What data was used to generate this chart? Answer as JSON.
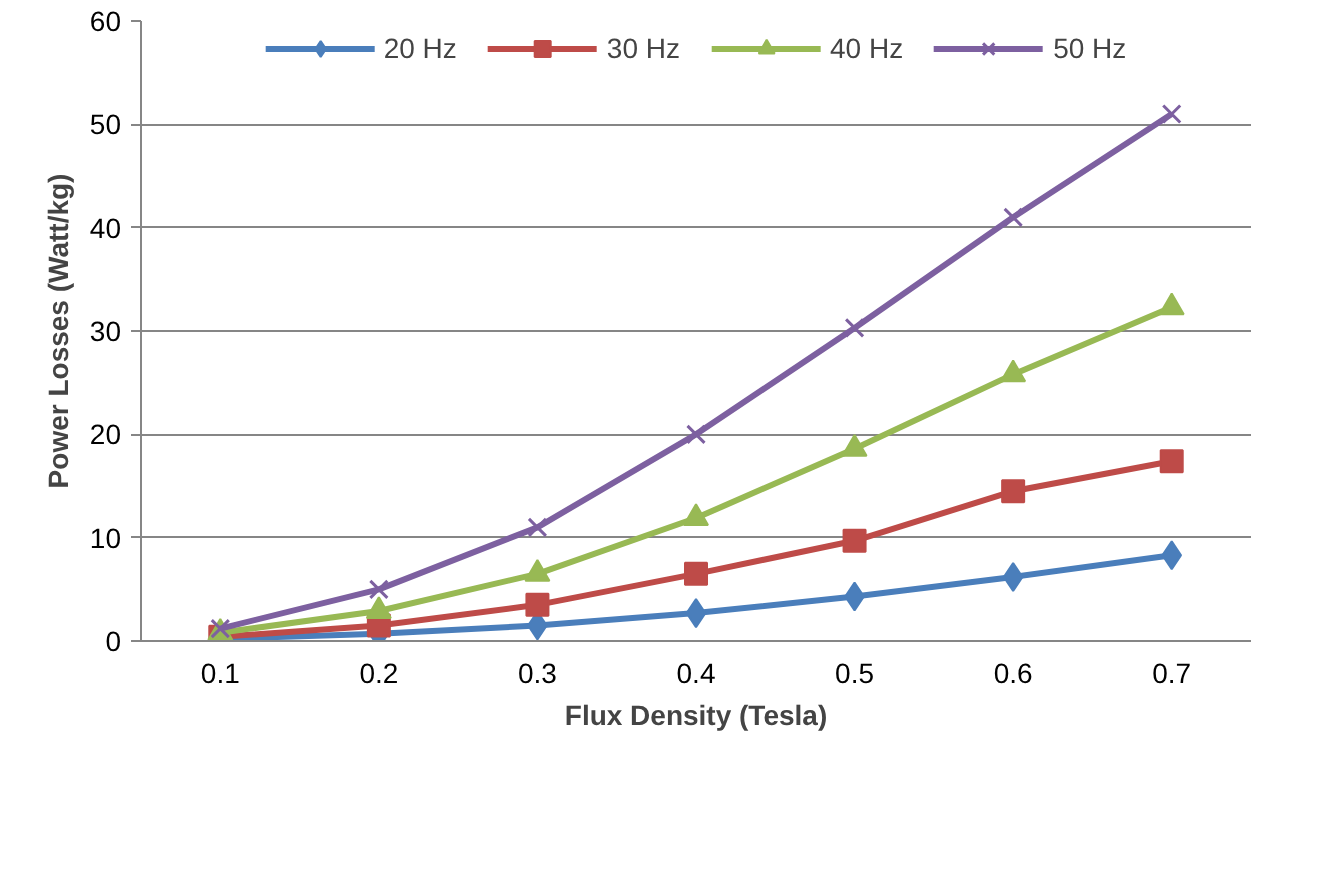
{
  "chart_data": {
    "type": "line",
    "xlabel": "Flux Density (Tesla)",
    "ylabel": "Power Losses (Watt/kg)",
    "categories": [
      "0.1",
      "0.2",
      "0.3",
      "0.4",
      "0.5",
      "0.6",
      "0.7"
    ],
    "ylim": [
      0,
      60
    ],
    "yticks": [
      0,
      10,
      20,
      30,
      40,
      50,
      60
    ],
    "grid": "y",
    "legend": "top",
    "series": [
      {
        "name": "20 Hz",
        "color": "#4a7ebb",
        "marker": "diamond",
        "values": [
          0.2,
          0.7,
          1.5,
          2.7,
          4.3,
          6.2,
          8.3
        ]
      },
      {
        "name": "30 Hz",
        "color": "#be4b48",
        "marker": "square",
        "values": [
          0.4,
          1.5,
          3.5,
          6.5,
          9.7,
          14.5,
          17.4
        ]
      },
      {
        "name": "40 Hz",
        "color": "#98b954",
        "marker": "triangle",
        "values": [
          0.8,
          2.9,
          6.5,
          11.9,
          18.6,
          25.8,
          32.3
        ]
      },
      {
        "name": "50 Hz",
        "color": "#7d60a0",
        "marker": "cross",
        "values": [
          1.2,
          5,
          11,
          20,
          30.3,
          41,
          51
        ]
      }
    ]
  }
}
